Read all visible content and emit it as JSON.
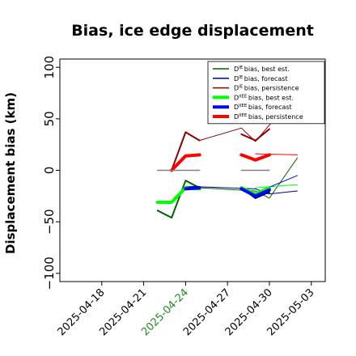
{
  "chart_data": {
    "type": "line",
    "title": "Bias, ice edge displacement",
    "xlabel": "",
    "ylabel": "Displacement bias (km)",
    "ylim": [
      -108,
      108
    ],
    "xlim": [
      "2025-04-15",
      "2025-05-04"
    ],
    "yticks": [
      "100",
      "50",
      "0",
      "−50",
      "−100"
    ],
    "ytick_values": [
      100,
      50,
      0,
      -50,
      -100
    ],
    "xticks": [
      {
        "label": "2025-04-18",
        "date": "2025-04-18",
        "color": "#000000"
      },
      {
        "label": "2025-04-21",
        "date": "2025-04-21",
        "color": "#000000"
      },
      {
        "label": "2025-04-24",
        "date": "2025-04-24",
        "color": "#228b22"
      },
      {
        "label": "2025-04-27",
        "date": "2025-04-27",
        "color": "#000000"
      },
      {
        "label": "2025-04-30",
        "date": "2025-04-30",
        "color": "#000000"
      },
      {
        "label": "2025-05-03",
        "date": "2025-05-03",
        "color": "#000000"
      }
    ],
    "legend_position": "top-right",
    "legend": [
      {
        "sup": "IE",
        "text": "bias, best est.",
        "color": "#006400",
        "thick": false
      },
      {
        "sup": "IE",
        "text": "bias, forecast",
        "color": "#00008b",
        "thick": false
      },
      {
        "sup": "IE",
        "text": "bias, persistence",
        "color": "#8b0000",
        "thick": false
      },
      {
        "sup": "IIEE",
        "text": "bias, best est.",
        "color": "#00ff00",
        "thick": true
      },
      {
        "sup": "IIEE",
        "text": "bias, forecast",
        "color": "#0000ff",
        "thick": true
      },
      {
        "sup": "IIEE",
        "text": "bias, persistence",
        "color": "#ff0000",
        "thick": true
      }
    ],
    "series": [
      {
        "color": "#006400",
        "width": 2,
        "points": [
          [
            "2025-04-22",
            -39
          ],
          [
            "2025-04-23",
            -46
          ],
          [
            "2025-04-24",
            -10
          ],
          [
            "2025-04-25",
            -17
          ]
        ]
      },
      {
        "color": "#00008b",
        "width": 2,
        "points": [
          [
            "2025-04-24",
            -16
          ],
          [
            "2025-04-25",
            -16
          ]
        ]
      },
      {
        "color": "#8b0000",
        "width": 2,
        "points": [
          [
            "2025-04-23",
            0
          ],
          [
            "2025-04-24",
            37
          ],
          [
            "2025-04-25",
            29
          ]
        ]
      },
      {
        "color": "#00ff00",
        "width": 4,
        "points": [
          [
            "2025-04-22",
            -31
          ],
          [
            "2025-04-23",
            -31
          ],
          [
            "2025-04-24",
            -17
          ],
          [
            "2025-04-25",
            -18
          ]
        ]
      },
      {
        "color": "#0000ff",
        "width": 4,
        "points": [
          [
            "2025-04-24",
            -18
          ],
          [
            "2025-04-25",
            -17
          ]
        ]
      },
      {
        "color": "#ff0000",
        "width": 4,
        "points": [
          [
            "2025-04-23",
            0
          ],
          [
            "2025-04-24",
            14
          ],
          [
            "2025-04-25",
            15
          ]
        ]
      },
      {
        "color": "#006400",
        "width": 1,
        "points": [
          [
            "2025-04-25",
            -17
          ],
          [
            "2025-04-29",
            -20
          ],
          [
            "2025-04-30",
            -27
          ],
          [
            "2025-05-02",
            12
          ]
        ]
      },
      {
        "color": "#00008b",
        "width": 1,
        "points": [
          [
            "2025-04-25",
            -16
          ],
          [
            "2025-04-29",
            -18
          ],
          [
            "2025-04-30",
            -23
          ],
          [
            "2025-05-02",
            -20
          ]
        ]
      },
      {
        "color": "#8b0000",
        "width": 1,
        "points": [
          [
            "2025-04-25",
            29
          ],
          [
            "2025-04-28",
            41
          ],
          [
            "2025-04-29",
            28
          ],
          [
            "2025-05-02",
            76
          ]
        ]
      },
      {
        "color": "#00ff00",
        "width": 1,
        "points": [
          [
            "2025-04-29",
            -17
          ],
          [
            "2025-05-02",
            -14
          ]
        ]
      },
      {
        "color": "#0000ff",
        "width": 1,
        "points": [
          [
            "2025-04-29",
            -22
          ],
          [
            "2025-05-02",
            -5
          ]
        ]
      },
      {
        "color": "#ff0000",
        "width": 1,
        "points": [
          [
            "2025-04-29",
            16
          ],
          [
            "2025-05-02",
            15
          ]
        ]
      },
      {
        "color": "#006400",
        "width": 2,
        "points": [
          [
            "2025-04-28",
            -17
          ],
          [
            "2025-04-29",
            -24
          ],
          [
            "2025-04-30",
            -22
          ]
        ]
      },
      {
        "color": "#00008b",
        "width": 2,
        "points": [
          [
            "2025-04-28",
            -17
          ],
          [
            "2025-04-29",
            -27
          ],
          [
            "2025-04-30",
            -21
          ]
        ]
      },
      {
        "color": "#8b0000",
        "width": 2,
        "points": [
          [
            "2025-04-28",
            35
          ],
          [
            "2025-04-29",
            29
          ],
          [
            "2025-04-30",
            40
          ]
        ]
      },
      {
        "color": "#00ff00",
        "width": 4,
        "points": [
          [
            "2025-04-28",
            -17
          ],
          [
            "2025-04-29",
            -23
          ],
          [
            "2025-04-30",
            -17
          ]
        ]
      },
      {
        "color": "#0000ff",
        "width": 4,
        "points": [
          [
            "2025-04-28",
            -18
          ],
          [
            "2025-04-29",
            -25
          ],
          [
            "2025-04-30",
            -19
          ]
        ]
      },
      {
        "color": "#ff0000",
        "width": 4,
        "points": [
          [
            "2025-04-28",
            15
          ],
          [
            "2025-04-29",
            10
          ],
          [
            "2025-04-30",
            15
          ]
        ]
      },
      {
        "color": "#808080",
        "width": 1.5,
        "points": [
          [
            "2025-04-22",
            0
          ],
          [
            "2025-04-25",
            0
          ]
        ]
      },
      {
        "color": "#808080",
        "width": 1.5,
        "points": [
          [
            "2025-04-28",
            0
          ],
          [
            "2025-04-30",
            0
          ]
        ]
      }
    ]
  }
}
